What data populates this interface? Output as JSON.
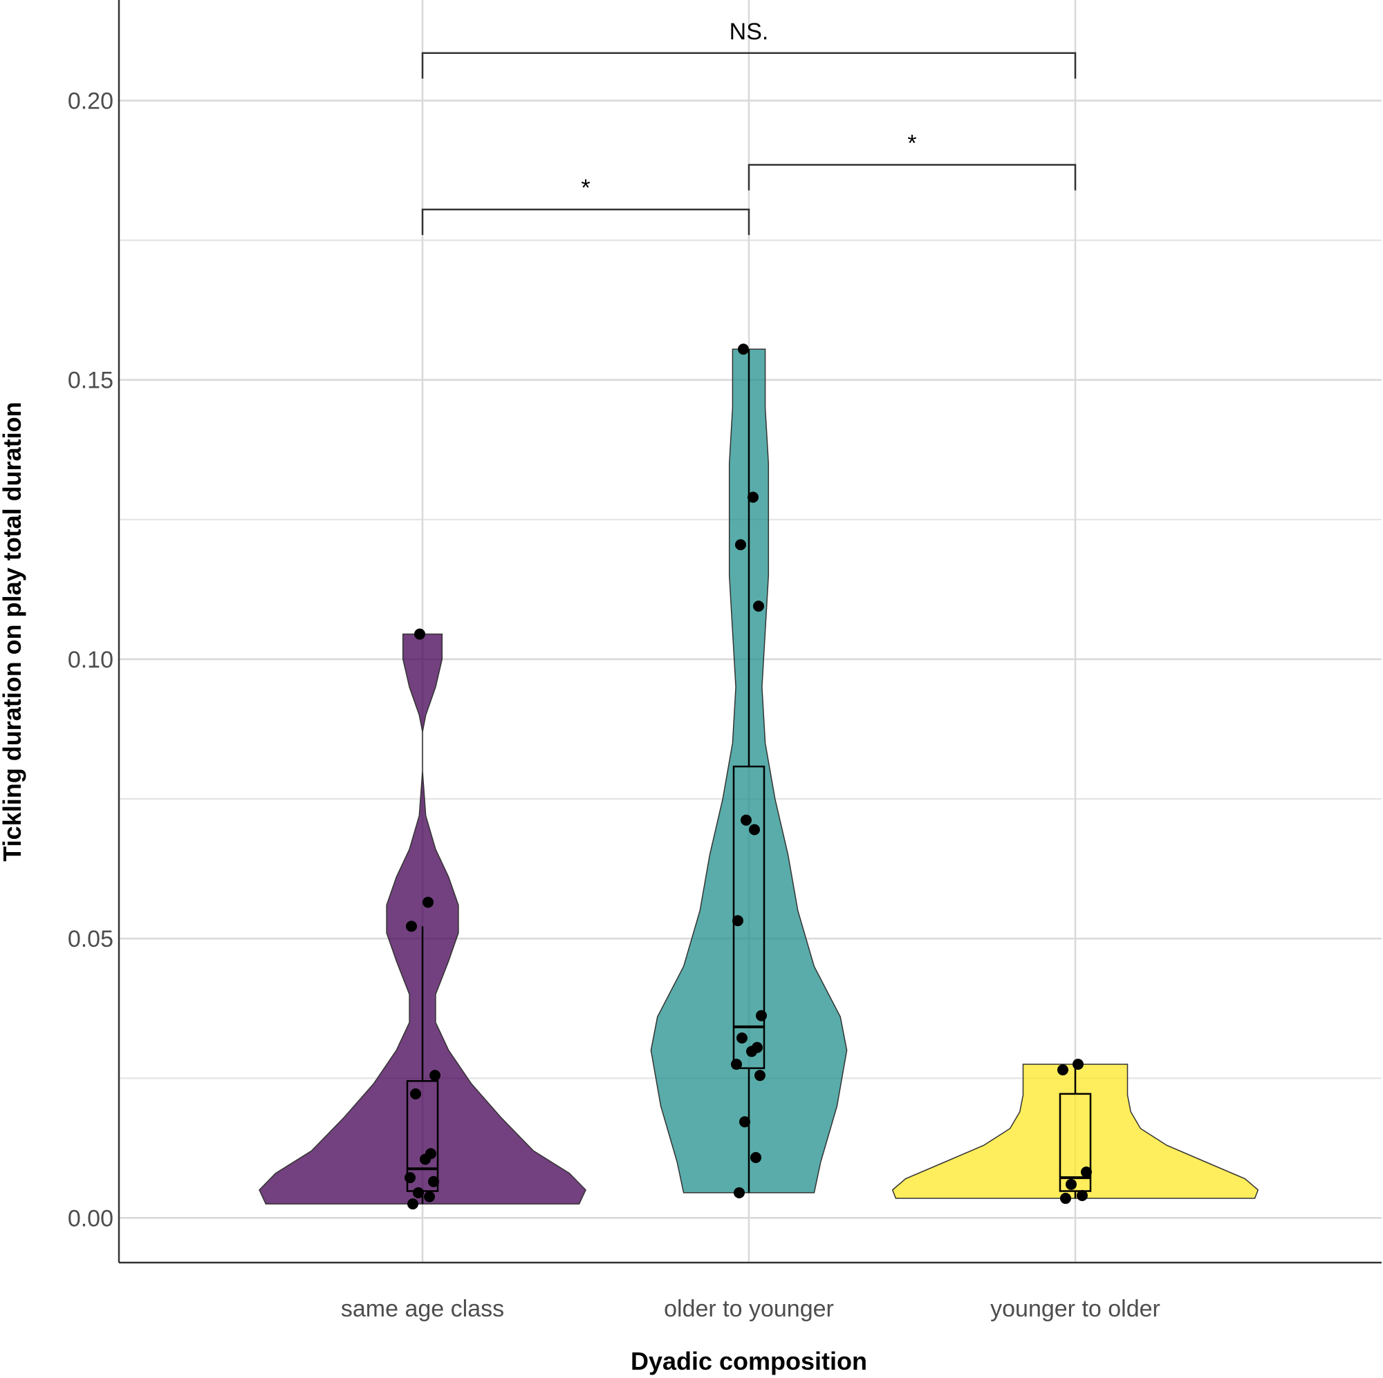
{
  "chart_data": {
    "type": "violin",
    "xlabel": "Dyadic composition",
    "ylabel": "Tickling duration on play total duration",
    "ylim": [
      -0.008,
      0.218
    ],
    "yticks": [
      "0.00",
      "0.05",
      "0.10",
      "0.15",
      "0.20"
    ],
    "ytick_values": [
      0.0,
      0.05,
      0.1,
      0.15,
      0.2
    ],
    "grid": true,
    "categories": [
      "same age class",
      "older to younger",
      "younger to older"
    ],
    "groups": [
      {
        "name": "same age class",
        "color": "#440154",
        "violin": [
          [
            0.0025,
            0.48
          ],
          [
            0.005,
            0.5
          ],
          [
            0.008,
            0.45
          ],
          [
            0.012,
            0.34
          ],
          [
            0.018,
            0.24
          ],
          [
            0.024,
            0.15
          ],
          [
            0.03,
            0.08
          ],
          [
            0.035,
            0.04
          ],
          [
            0.04,
            0.04
          ],
          [
            0.046,
            0.08
          ],
          [
            0.051,
            0.11
          ],
          [
            0.056,
            0.11
          ],
          [
            0.061,
            0.08
          ],
          [
            0.066,
            0.04
          ],
          [
            0.072,
            0.01
          ],
          [
            0.08,
            0.0
          ],
          [
            0.087,
            0.0
          ],
          [
            0.09,
            0.01
          ],
          [
            0.095,
            0.04
          ],
          [
            0.1,
            0.06
          ],
          [
            0.1045,
            0.06
          ]
        ],
        "box": {
          "q1": 0.0048,
          "median": 0.0088,
          "q3": 0.0245,
          "whisker_low": 0.0025,
          "whisker_high": 0.0522
        },
        "points": [
          0.0025,
          0.0038,
          0.0045,
          0.0065,
          0.0072,
          0.0105,
          0.0115,
          0.0222,
          0.0255,
          0.0522,
          0.0565,
          0.1045
        ]
      },
      {
        "name": "older to younger",
        "color": "#21908C",
        "violin": [
          [
            0.0045,
            0.2
          ],
          [
            0.01,
            0.22
          ],
          [
            0.02,
            0.27
          ],
          [
            0.03,
            0.3
          ],
          [
            0.036,
            0.28
          ],
          [
            0.045,
            0.2
          ],
          [
            0.055,
            0.15
          ],
          [
            0.065,
            0.12
          ],
          [
            0.075,
            0.08
          ],
          [
            0.085,
            0.05
          ],
          [
            0.095,
            0.04
          ],
          [
            0.105,
            0.05
          ],
          [
            0.115,
            0.06
          ],
          [
            0.125,
            0.06
          ],
          [
            0.135,
            0.06
          ],
          [
            0.145,
            0.05
          ],
          [
            0.1555,
            0.05
          ]
        ],
        "box": {
          "q1": 0.0268,
          "median": 0.0342,
          "q3": 0.0808,
          "whisker_low": 0.0045,
          "whisker_high": 0.1555
        },
        "points": [
          0.0045,
          0.0108,
          0.0172,
          0.0255,
          0.0275,
          0.0298,
          0.0305,
          0.0322,
          0.0362,
          0.0532,
          0.0695,
          0.0712,
          0.1095,
          0.1205,
          0.129,
          0.1555
        ]
      },
      {
        "name": "younger to older",
        "color": "#FDE725",
        "violin": [
          [
            0.0035,
            0.55
          ],
          [
            0.005,
            0.56
          ],
          [
            0.007,
            0.52
          ],
          [
            0.01,
            0.4
          ],
          [
            0.013,
            0.28
          ],
          [
            0.016,
            0.2
          ],
          [
            0.019,
            0.17
          ],
          [
            0.022,
            0.16
          ],
          [
            0.025,
            0.16
          ],
          [
            0.0275,
            0.16
          ]
        ],
        "box": {
          "q1": 0.0048,
          "median": 0.0072,
          "q3": 0.0222,
          "whisker_low": 0.0035,
          "whisker_high": 0.0275
        },
        "points": [
          0.0035,
          0.004,
          0.006,
          0.0082,
          0.0265,
          0.0275
        ]
      }
    ],
    "comparisons": [
      {
        "from": "same age class",
        "to": "older to younger",
        "label": "*",
        "y": 0.1805
      },
      {
        "from": "older to younger",
        "to": "younger to older",
        "label": "*",
        "y": 0.1885
      },
      {
        "from": "same age class",
        "to": "younger to older",
        "label": "NS.",
        "y": 0.2085
      }
    ]
  }
}
